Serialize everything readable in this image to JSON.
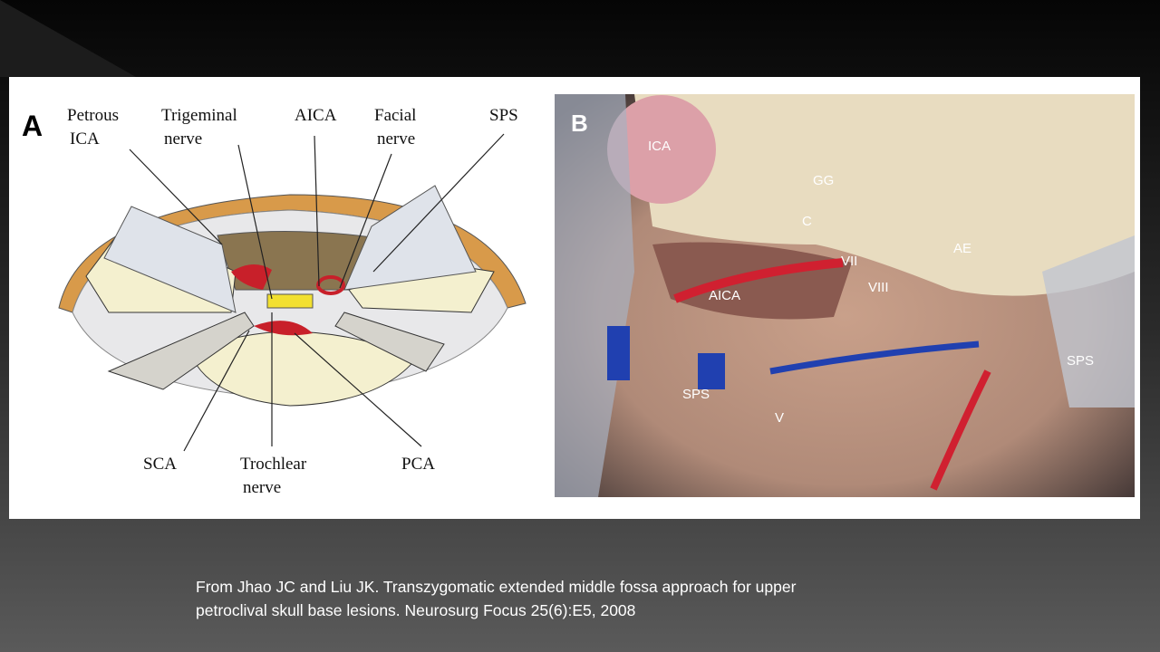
{
  "panel_a": {
    "letter": "A",
    "labels": [
      {
        "lines": [
          "Petrous",
          "ICA"
        ]
      },
      {
        "lines": [
          "Trigeminal",
          "nerve"
        ]
      },
      {
        "lines": [
          "AICA"
        ]
      },
      {
        "lines": [
          "Facial",
          "nerve"
        ]
      },
      {
        "lines": [
          "SPS"
        ]
      },
      {
        "lines": [
          "SCA"
        ]
      },
      {
        "lines": [
          "Trochlear",
          "nerve"
        ]
      },
      {
        "lines": [
          "PCA"
        ]
      }
    ]
  },
  "panel_b": {
    "letter": "B",
    "labels": [
      "ICA",
      "GG",
      "C",
      "AE",
      "VII",
      "VIII",
      "AICA",
      "SPS",
      "SPS",
      "V"
    ]
  },
  "caption": {
    "lines": [
      "From Jhao JC and Liu JK. Transzygomatic extended middle fossa approach for upper",
      "petroclival skull base lesions. Neurosurg Focus 25(6):E5, 2008"
    ]
  }
}
